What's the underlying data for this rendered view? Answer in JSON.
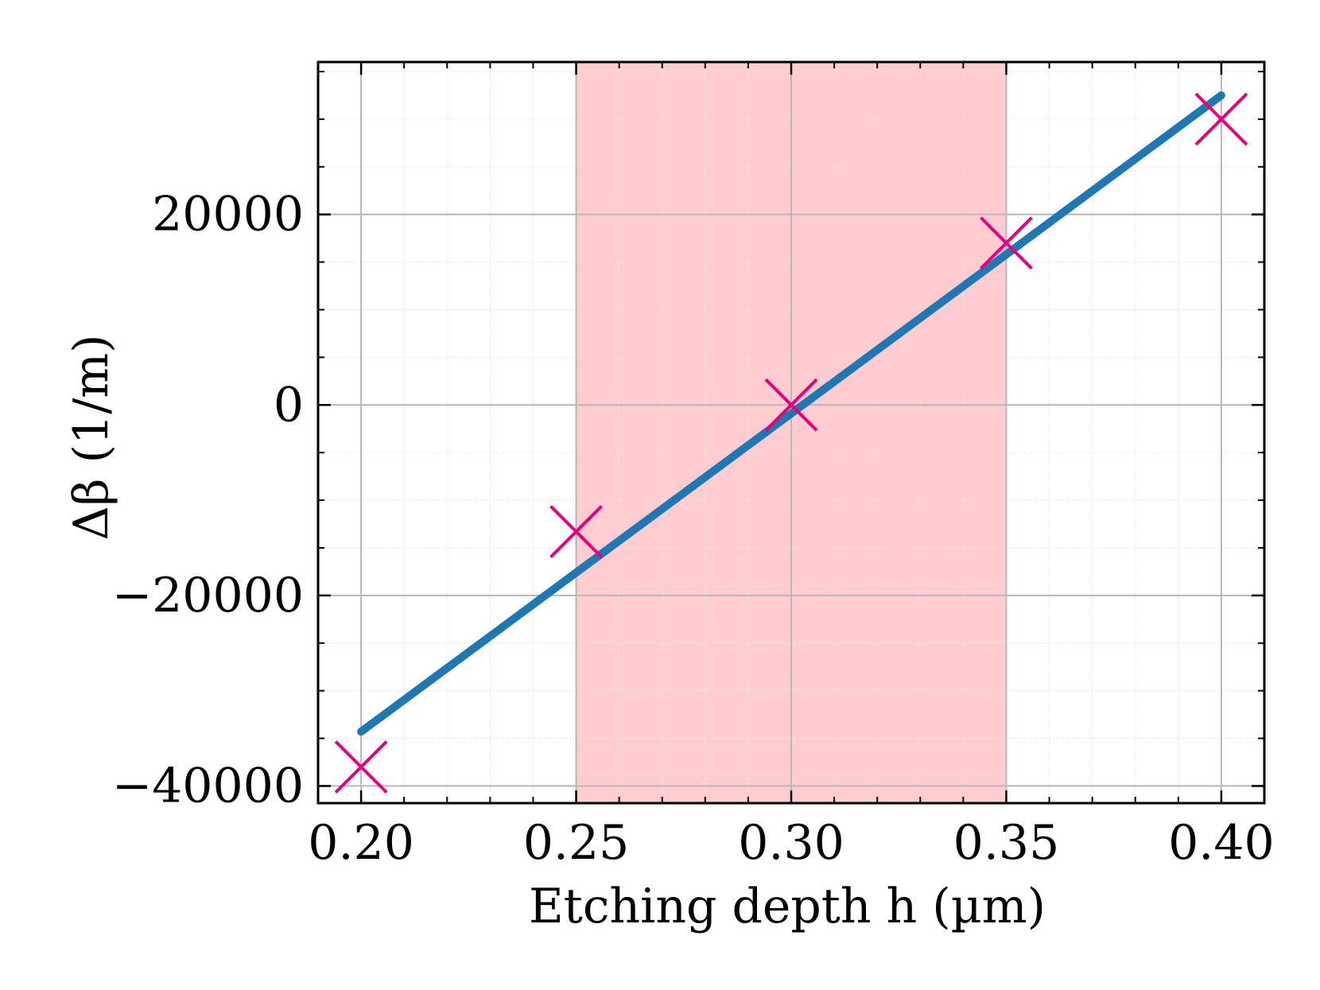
{
  "chart_data": {
    "type": "scatter",
    "title": "",
    "xlabel": "Etching depth h (µm)",
    "ylabel": "Δβ (1/m)",
    "xlim": [
      0.19,
      0.41
    ],
    "ylim": [
      -41800,
      36000
    ],
    "x_ticks": [
      0.2,
      0.25,
      0.3,
      0.35,
      0.4
    ],
    "x_tick_labels": [
      "0.20",
      "0.25",
      "0.30",
      "0.35",
      "0.40"
    ],
    "y_ticks": [
      -40000,
      -20000,
      0,
      20000
    ],
    "y_tick_labels": [
      "−40000",
      "−20000",
      "0",
      "20000"
    ],
    "grid": true,
    "shaded_region": {
      "x_from": 0.25,
      "x_to": 0.35,
      "color": "#ffccd0"
    },
    "series": [
      {
        "kind": "markers",
        "marker": "x",
        "color": "#e6007e",
        "x": [
          0.2,
          0.25,
          0.3,
          0.35,
          0.4
        ],
        "y": [
          -38000,
          -13300,
          0,
          17000,
          30000
        ]
      },
      {
        "kind": "line",
        "color": "#1f77b4",
        "x": [
          0.2,
          0.4
        ],
        "y": [
          -34300,
          32500
        ]
      }
    ]
  }
}
